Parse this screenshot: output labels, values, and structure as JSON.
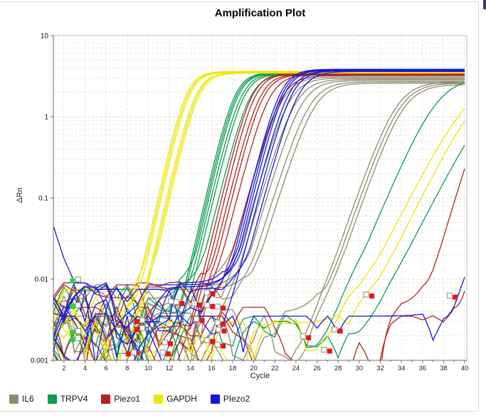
{
  "page": {
    "background": "#ffffff",
    "divider_color": "#d9d9d9",
    "corner_fragment_color": "#27408b"
  },
  "chart_data": {
    "type": "line",
    "title": "Amplification Plot",
    "xlabel": "Cycle",
    "ylabel": "ΔRn",
    "x_domain": [
      1,
      40.2
    ],
    "x_ticks": [
      2,
      4,
      6,
      8,
      10,
      12,
      14,
      16,
      18,
      20,
      22,
      24,
      26,
      28,
      30,
      32,
      34,
      36,
      38,
      40
    ],
    "y_scale": "log",
    "y_domain": [
      0.001,
      10
    ],
    "y_ticks": [
      10,
      1,
      0.1,
      0.01,
      0.001
    ],
    "grid": "dashed",
    "axis_color": "#6e6e6e",
    "border_color": "#bcbcbc",
    "grid_major_color": "#d6d6d6",
    "grid_minor_color": "#e4e4e4",
    "seed": 7,
    "legend": {
      "position": "bottom-left",
      "entries": [
        {
          "label": "IL6",
          "color": "#8e8b70"
        },
        {
          "label": "TRPV4",
          "color": "#0a9c4f"
        },
        {
          "label": "Piezo1",
          "color": "#b2221f"
        },
        {
          "label": "GAPDH",
          "color": "#f0e400"
        },
        {
          "label": "PIezo2",
          "color": "#1418dc"
        }
      ]
    },
    "marker_colors": {
      "TRPV4": "#2bd435",
      "Piezo1": "#ee1111"
    },
    "series": [
      {
        "target": "IL6",
        "color": "#8e8b70",
        "curves": [
          {
            "ct": 17.2,
            "k": 1.05,
            "p": 3.1,
            "nc": 0.009
          },
          {
            "ct": 17.9,
            "k": 1.05,
            "p": 3.0,
            "nc": 0.009
          },
          {
            "ct": 18.3,
            "k": 1.0,
            "p": 2.9,
            "nc": 0.0085
          },
          {
            "ct": 18.9,
            "k": 1.0,
            "p": 2.8,
            "nc": 0.008
          },
          {
            "ct": 19.4,
            "k": 0.95,
            "p": 2.7,
            "nc": 0.008
          },
          {
            "ct": 19.9,
            "k": 0.95,
            "p": 2.6,
            "nc": 0.0075
          },
          {
            "ct": 27.0,
            "k": 0.85,
            "p": 2.7,
            "nc": 0.0042
          },
          {
            "ct": 27.35,
            "k": 0.85,
            "p": 2.6,
            "nc": 0.0038
          },
          {
            "ct": 27.7,
            "k": 0.85,
            "p": 2.5,
            "nc": 0.0035
          }
        ]
      },
      {
        "target": "TRPV4",
        "color": "#0a9c4f",
        "curves": [
          {
            "ct": 13.65,
            "k": 1.3,
            "p": 3.5,
            "nc": 0.009
          },
          {
            "ct": 13.8,
            "k": 1.3,
            "p": 3.45,
            "nc": 0.0085
          },
          {
            "ct": 13.95,
            "k": 1.3,
            "p": 3.42,
            "nc": 0.008
          },
          {
            "ct": 14.1,
            "k": 1.25,
            "p": 3.4,
            "nc": 0.0085
          },
          {
            "ct": 14.35,
            "k": 1.25,
            "p": 3.35,
            "nc": 0.008
          },
          {
            "ct": 14.75,
            "k": 1.2,
            "p": 3.3,
            "nc": 0.0075
          },
          {
            "ct": 29.3,
            "k": 0.7,
            "p": 3.1,
            "nc": 0.0035
          },
          {
            "ct": 33.2,
            "k": 0.58,
            "p": 3.2,
            "nc": 0.003
          }
        ]
      },
      {
        "target": "Piezo1",
        "color": "#b2221f",
        "curves": [
          {
            "ct": 15.1,
            "k": 1.25,
            "p": 3.42,
            "nc": 0.009
          },
          {
            "ct": 15.4,
            "k": 1.25,
            "p": 3.38,
            "nc": 0.0085
          },
          {
            "ct": 15.7,
            "k": 1.2,
            "p": 3.35,
            "nc": 0.009
          },
          {
            "ct": 16.0,
            "k": 1.2,
            "p": 3.3,
            "nc": 0.0085
          },
          {
            "ct": 16.4,
            "k": 1.15,
            "p": 3.28,
            "nc": 0.008
          },
          {
            "ct": 17.3,
            "k": 1.1,
            "p": 3.22,
            "nc": 0.008
          },
          {
            "ct": 36.8,
            "k": 1.0,
            "p": 3.3,
            "nc": 0.0045
          },
          {
            "ct": 40.4,
            "k": 1.6,
            "p": 3.3,
            "nc": 0.0035
          }
        ]
      },
      {
        "target": "GAPDH",
        "color": "#f0e400",
        "curves": [
          {
            "ct": 9.2,
            "k": 1.35,
            "p": 3.62,
            "nc": 0.0075
          },
          {
            "ct": 9.35,
            "k": 1.35,
            "p": 3.58,
            "nc": 0.007
          },
          {
            "ct": 9.5,
            "k": 1.35,
            "p": 3.55,
            "nc": 0.0065
          },
          {
            "ct": 9.95,
            "k": 1.3,
            "p": 3.5,
            "nc": 0.007
          },
          {
            "ct": 10.1,
            "k": 1.3,
            "p": 3.55,
            "nc": 0.0065
          },
          {
            "ct": 10.25,
            "k": 1.3,
            "p": 3.45,
            "nc": 0.006
          },
          {
            "ct": 30.8,
            "k": 0.58,
            "p": 3.3,
            "nc": 0.003
          },
          {
            "ct": 32.0,
            "k": 0.6,
            "p": 3.3,
            "nc": 0.0028
          }
        ]
      },
      {
        "target": "PIezo2",
        "color": "#1418dc",
        "curves": [
          {
            "ct": 17.55,
            "k": 1.2,
            "p": 3.85,
            "nc": 0.009
          },
          {
            "ct": 17.75,
            "k": 1.2,
            "p": 3.8,
            "nc": 0.0085
          },
          {
            "ct": 17.95,
            "k": 1.2,
            "p": 3.75,
            "nc": 0.008
          },
          {
            "ct": 18.15,
            "k": 1.15,
            "p": 3.72,
            "nc": 0.0085
          },
          {
            "ct": 18.45,
            "k": 1.15,
            "p": 3.68,
            "nc": 0.008
          },
          {
            "ct": 18.85,
            "k": 1.1,
            "p": 3.62,
            "nc": 0.0075
          },
          {
            "ct": 40.0,
            "k": 0.9,
            "p": 3.5,
            "nc": 0.0035
          }
        ]
      }
    ],
    "extra_traces": [
      {
        "target": "PIezo2",
        "color": "#1418dc",
        "points": [
          [
            1,
            0.045
          ],
          [
            2,
            0.018
          ],
          [
            2.8,
            0.0105
          ],
          [
            3.6,
            0.004
          ],
          [
            4,
            0.0075
          ],
          [
            5,
            0.0009
          ],
          [
            6,
            0.0042
          ],
          [
            7,
            0.0011
          ],
          [
            8,
            0.0035
          ],
          [
            9,
            0.0007
          ],
          [
            10,
            0.0024
          ],
          [
            11,
            0.0012
          ],
          [
            12,
            0.0006
          ]
        ]
      }
    ],
    "markers": [
      {
        "target": "TRPV4",
        "c": 2.8,
        "v": 0.0095,
        "open": "R"
      },
      {
        "target": "TRPV4",
        "c": 2.8,
        "v": 0.0046,
        "open": "R"
      },
      {
        "target": "TRPV4",
        "c": 2.8,
        "v": 0.0022,
        "open": "R"
      },
      {
        "target": "TRPV4",
        "c": 2.8,
        "v": 0.0018,
        "open": "R"
      },
      {
        "target": "Piezo1",
        "c": 8.1,
        "v": 0.0012,
        "open": "R"
      },
      {
        "target": "Piezo1",
        "c": 8.9,
        "v": 0.003,
        "open": "R"
      },
      {
        "target": "Piezo1",
        "c": 8.9,
        "v": 0.0024,
        "open": "R"
      },
      {
        "target": "Piezo1",
        "c": 11.9,
        "v": 0.0012,
        "open": "L"
      },
      {
        "target": "Piezo1",
        "c": 12.1,
        "v": 0.0016,
        "open": "L"
      },
      {
        "target": "Piezo1",
        "c": 12.7,
        "v": 0.0051,
        "open": "L"
      },
      {
        "target": "Piezo1",
        "c": 13.2,
        "v": 0.005,
        "open": "L"
      },
      {
        "target": "Piezo1",
        "c": 14.9,
        "v": 0.0048,
        "open": "L"
      },
      {
        "target": "Piezo1",
        "c": 15.1,
        "v": 0.0031,
        "open": "L"
      },
      {
        "target": "Piezo1",
        "c": 16.1,
        "v": 0.0066,
        "open": "L"
      },
      {
        "target": "Piezo1",
        "c": 16.1,
        "v": 0.0046,
        "open": "L"
      },
      {
        "target": "Piezo1",
        "c": 16.1,
        "v": 0.0017,
        "open": "L"
      },
      {
        "target": "Piezo1",
        "c": 17.1,
        "v": 0.0044,
        "open": "L"
      },
      {
        "target": "Piezo1",
        "c": 17.1,
        "v": 0.0028,
        "open": "L"
      },
      {
        "target": "Piezo1",
        "c": 17.2,
        "v": 0.0023,
        "open": "L"
      },
      {
        "target": "Piezo1",
        "c": 17.1,
        "v": 0.0015,
        "open": "L"
      },
      {
        "target": "Piezo1",
        "c": 25.2,
        "v": 0.0019,
        "open": "L"
      },
      {
        "target": "Piezo1",
        "c": 27.2,
        "v": 0.0013,
        "open": "L"
      },
      {
        "target": "Piezo1",
        "c": 28.2,
        "v": 0.0023,
        "open": "L"
      },
      {
        "target": "Piezo1",
        "c": 31.2,
        "v": 0.0062,
        "open": "L"
      },
      {
        "target": "Piezo1",
        "c": 39.1,
        "v": 0.006,
        "open": "L"
      }
    ]
  }
}
